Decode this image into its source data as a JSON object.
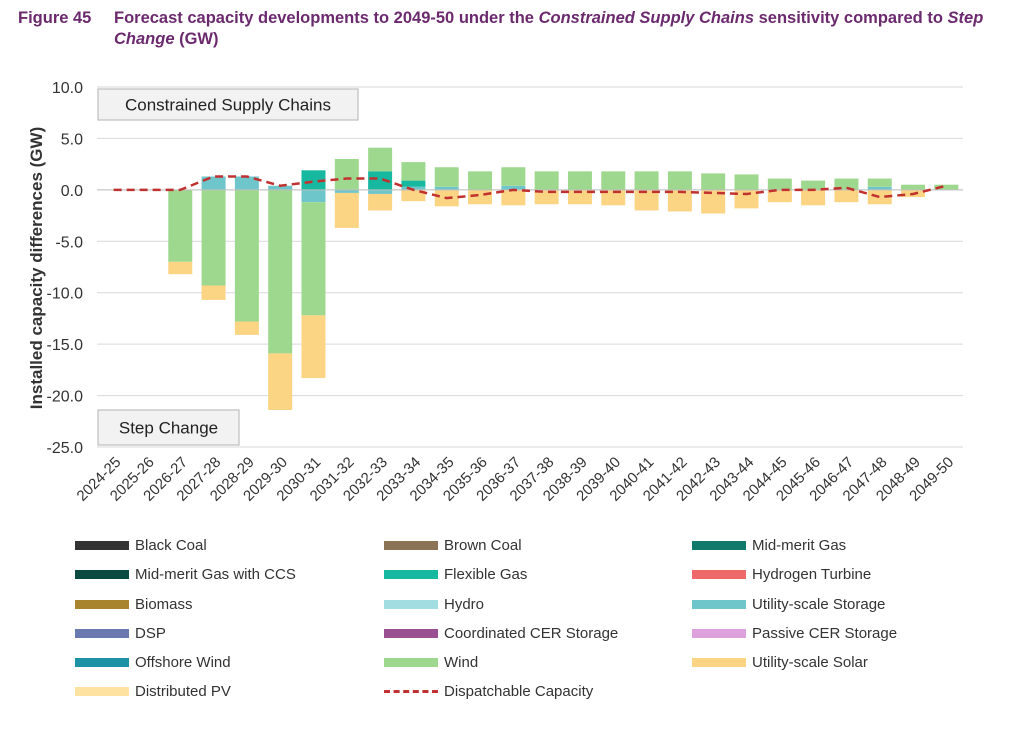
{
  "figure": {
    "number": "Figure 45",
    "title_part1": "Forecast capacity developments to 2049-50 under the ",
    "title_italic1": "Constrained Supply Chains",
    "title_part2": " sensitivity compared to ",
    "title_italic2": "Step Change",
    "title_part3": " (GW)"
  },
  "chart_data": {
    "type": "bar",
    "stacked": true,
    "title": "Forecast capacity developments to 2049-50 under the Constrained Supply Chains sensitivity compared to Step Change (GW)",
    "ylabel": "Installed capacity differences (GW)",
    "xlabel": "",
    "ylim": [
      -25,
      10
    ],
    "yticks": [
      "10.0",
      "5.0",
      "0.0",
      "-5.0",
      "-10.0",
      "-15.0",
      "-20.0",
      "-25.0"
    ],
    "ytick_values": [
      10,
      5,
      0,
      -5,
      -10,
      -15,
      -20,
      -25
    ],
    "annotations": {
      "top": "Constrained Supply Chains",
      "bottom": "Step Change"
    },
    "categories": [
      "2024-25",
      "2025-26",
      "2026-27",
      "2027-28",
      "2028-29",
      "2029-30",
      "2030-31",
      "2031-32",
      "2032-33",
      "2033-34",
      "2034-35",
      "2035-36",
      "2036-37",
      "2037-38",
      "2038-39",
      "2039-40",
      "2040-41",
      "2041-42",
      "2042-43",
      "2043-44",
      "2044-45",
      "2045-46",
      "2046-47",
      "2047-48",
      "2048-49",
      "2049-50"
    ],
    "legend": [
      {
        "name": "Black Coal",
        "color": "#333333"
      },
      {
        "name": "Brown Coal",
        "color": "#8b7355"
      },
      {
        "name": "Mid-merit Gas",
        "color": "#127a6a"
      },
      {
        "name": "Mid-merit Gas with CCS",
        "color": "#0b4a40"
      },
      {
        "name": "Flexible Gas",
        "color": "#17b8a0"
      },
      {
        "name": "Hydrogen Turbine",
        "color": "#ee6a6a"
      },
      {
        "name": "Biomass",
        "color": "#a8842e"
      },
      {
        "name": "Hydro",
        "color": "#a2dde2"
      },
      {
        "name": "Utility-scale Storage",
        "color": "#6ec6cb"
      },
      {
        "name": "DSP",
        "color": "#6a79b0"
      },
      {
        "name": "Coordinated CER Storage",
        "color": "#9a4f93"
      },
      {
        "name": "Passive CER Storage",
        "color": "#dda2dd"
      },
      {
        "name": "Offshore Wind",
        "color": "#1d91a6"
      },
      {
        "name": "Wind",
        "color": "#9ed88e"
      },
      {
        "name": "Utility-scale Solar",
        "color": "#fbd484"
      },
      {
        "name": "Distributed PV",
        "color": "#fde2a2"
      },
      {
        "name": "Dispatchable Capacity",
        "color": "#c0312f",
        "style": "dashed-line"
      }
    ],
    "series": [
      {
        "name": "Utility-scale Storage",
        "color": "#6ec6cb",
        "values": [
          0,
          0,
          0,
          1.3,
          1.3,
          0.4,
          -1.2,
          -0.3,
          -0.4,
          0.3,
          0.3,
          0,
          0.4,
          0,
          0,
          0,
          0,
          0,
          0,
          0,
          0,
          0,
          0,
          0.3,
          0,
          0
        ]
      },
      {
        "name": "Flexible Gas",
        "color": "#17b8a0",
        "values": [
          0,
          0,
          0,
          0,
          0,
          0,
          1.9,
          0,
          1.8,
          0.6,
          0,
          0,
          0,
          0,
          0,
          0,
          0,
          0,
          0,
          0,
          0,
          0,
          0,
          0,
          0,
          0
        ]
      },
      {
        "name": "Wind",
        "color": "#9ed88e",
        "values": [
          0,
          0,
          -7,
          -9.3,
          -12.8,
          -15.9,
          -11,
          0,
          0,
          0,
          0,
          0,
          0,
          0,
          0,
          0,
          0,
          0,
          0,
          0,
          0,
          0,
          0,
          0,
          0,
          0
        ]
      },
      {
        "name": "Utility-scale Solar",
        "color": "#fbd484",
        "values": [
          0,
          0,
          -1.2,
          -1.4,
          -1.3,
          -5.5,
          -6.1,
          0,
          0,
          0,
          0,
          0,
          0,
          0,
          0,
          0,
          0,
          0,
          0,
          0,
          0,
          0,
          0,
          0,
          0,
          0
        ]
      },
      {
        "name": "Wind (positive)",
        "color": "#9ed88e",
        "values": [
          0,
          0,
          0,
          0,
          0,
          0,
          0,
          3,
          2.3,
          1.8,
          1.9,
          1.8,
          1.8,
          1.8,
          1.8,
          1.8,
          1.8,
          1.8,
          1.6,
          1.5,
          1.1,
          0.9,
          1.1,
          0.8,
          0.5,
          0.5
        ]
      },
      {
        "name": "Utility-scale Solar (negative)",
        "color": "#fbd484",
        "values": [
          0,
          0,
          0,
          0,
          0,
          0,
          0,
          -3.4,
          -1.6,
          -1.1,
          -1.6,
          -1.4,
          -1.5,
          -1.4,
          -1.4,
          -1.5,
          -2,
          -2.1,
          -2.3,
          -1.8,
          -1.2,
          -1.5,
          -1.2,
          -1.4,
          -0.7,
          0
        ]
      }
    ],
    "dispatchable_capacity": [
      0,
      0,
      0,
      1.3,
      1.3,
      0.4,
      0.8,
      1.1,
      1.1,
      0,
      -0.8,
      -0.5,
      0,
      -0.2,
      -0.2,
      -0.2,
      -0.2,
      -0.2,
      -0.3,
      -0.4,
      0,
      0,
      0.2,
      -0.7,
      -0.4,
      0.4
    ]
  }
}
